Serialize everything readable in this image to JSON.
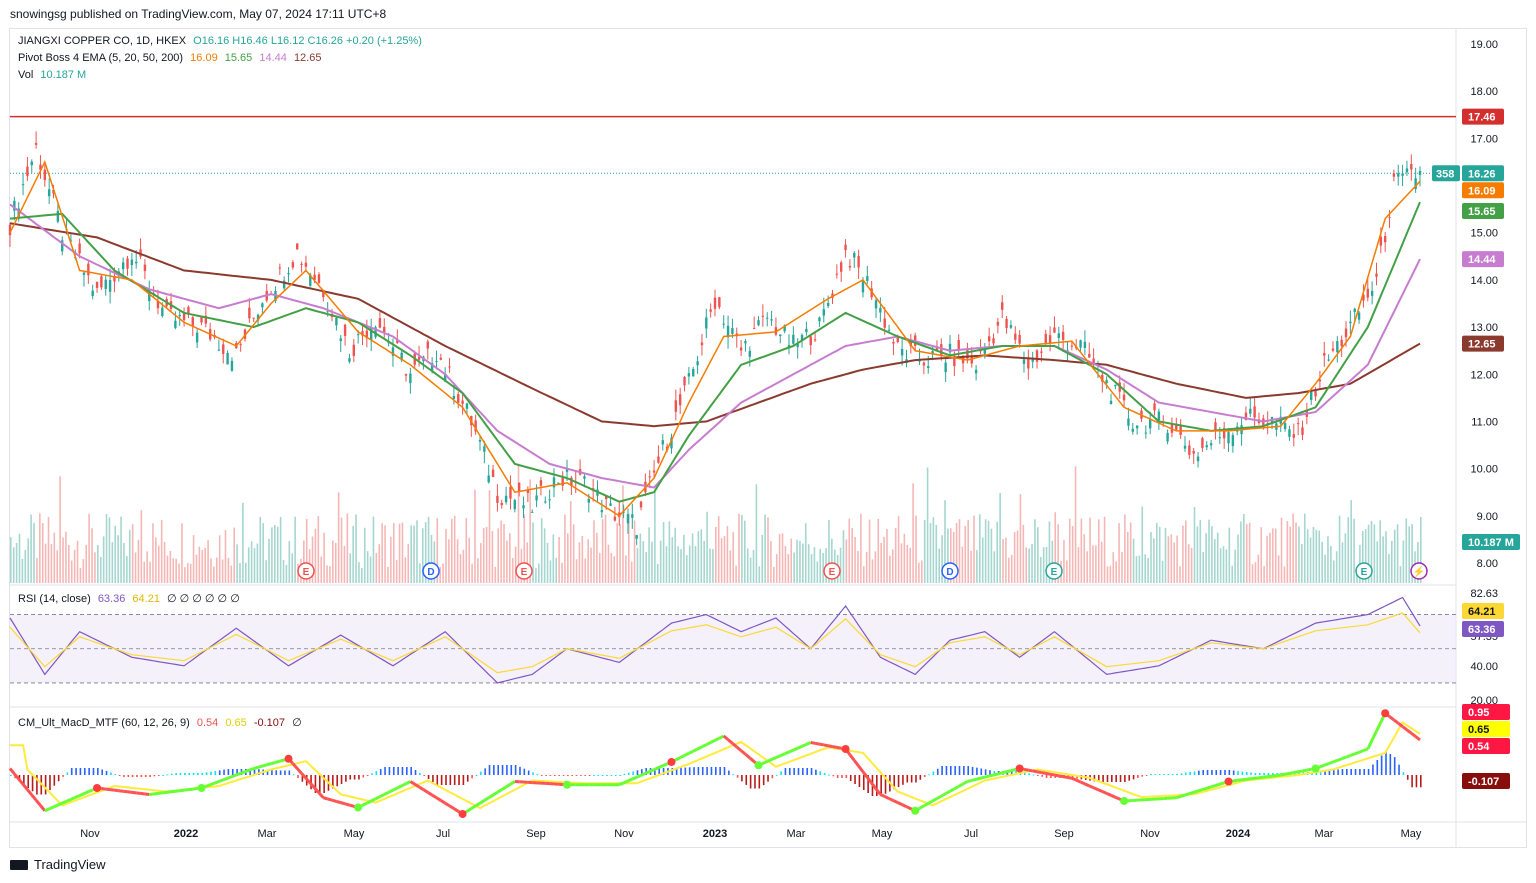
{
  "header": {
    "text": "snowingsg published on TradingView.com, May 07, 2024 17:11 UTC+8"
  },
  "footer": {
    "brand": "TradingView"
  },
  "legend": {
    "symbol": "JIANGXI COPPER CO, 1D, HKEX",
    "ohlc": "O16.16  H16.46  L16.12  C16.26  +0.20 (+1.25%)",
    "ema_label": "Pivot Boss 4 EMA (5, 20, 50, 200)",
    "ema_values": [
      "16.09",
      "15.65",
      "14.44",
      "12.65"
    ],
    "vol_label": "Vol",
    "vol_value": "10.187 M",
    "rsi_label": "RSI (14, close)",
    "rsi_values": [
      "63.36",
      "64.21"
    ],
    "rsi_extra": "∅ ∅ ∅ ∅ ∅ ∅",
    "macd_label": "CM_Ult_MacD_MTF (60, 12, 26, 9)",
    "macd_values": [
      "0.54",
      "0.65",
      "-0.107",
      "∅"
    ]
  },
  "colors": {
    "up": "#26a69a",
    "down": "#ef5350",
    "ema5": "#f57c00",
    "ema20": "#43a047",
    "ema50": "#c77dcf",
    "ema200": "#8b3a2e",
    "resistance": "#d32f2f",
    "rsi": "#7e57c2",
    "rsi_ma": "#fdd835"
  },
  "price_axis": {
    "ticks": [
      "19.00",
      "18.00",
      "17.00",
      "15.00",
      "14.00",
      "13.00",
      "12.00",
      "11.00",
      "10.00",
      "9.00",
      "8.00"
    ]
  },
  "price_tags": [
    {
      "text": "17.46",
      "color": "#d32f2f"
    },
    {
      "text": "16.26",
      "color": "#26a69a",
      "extra": "358"
    },
    {
      "text": "16.09",
      "color": "#f57c00"
    },
    {
      "text": "15.65",
      "color": "#43a047"
    },
    {
      "text": "14.44",
      "color": "#c77dcf"
    },
    {
      "text": "12.65",
      "color": "#8b3a2e"
    },
    {
      "text": "10.187 M",
      "color": "#26a69a"
    }
  ],
  "rsi_axis": {
    "ticks": [
      "82.63",
      "57.35",
      "40.00",
      "20.00"
    ],
    "tags": [
      {
        "text": "64.21",
        "color": "#fdd835"
      },
      {
        "text": "63.36",
        "color": "#7e57c2"
      }
    ]
  },
  "macd_axis": {
    "tags": [
      {
        "text": "0.95",
        "color": "#ff1744"
      },
      {
        "text": "0.65",
        "color": "#ffff00"
      },
      {
        "text": "0.54",
        "color": "#ff1744"
      },
      {
        "text": "-0.107",
        "color": "#880e0e"
      }
    ]
  },
  "time_axis": {
    "labels": [
      "Nov",
      "2022",
      "Mar",
      "May",
      "Jul",
      "Sep",
      "Nov",
      "2023",
      "Mar",
      "May",
      "Jul",
      "Sep",
      "Nov",
      "2024",
      "Mar",
      "May"
    ]
  },
  "events": [
    "E",
    "D",
    "E",
    "E",
    "D",
    "E",
    "E",
    "⚡"
  ],
  "chart_data": {
    "type": "candlestick",
    "title": "JIANGXI COPPER CO, 1D, HKEX",
    "ylim": [
      7.8,
      19.5
    ],
    "resistance": 17.46,
    "last_close": 16.26,
    "price_path": [
      [
        0,
        15.2
      ],
      [
        3,
        16.8
      ],
      [
        6,
        15.0
      ],
      [
        10,
        13.7
      ],
      [
        14,
        14.6
      ],
      [
        18,
        13.2
      ],
      [
        22,
        13.0
      ],
      [
        26,
        12.4
      ],
      [
        29,
        13.6
      ],
      [
        33,
        14.6
      ],
      [
        36,
        13.8
      ],
      [
        39,
        12.5
      ],
      [
        42,
        13.2
      ],
      [
        46,
        12.0
      ],
      [
        49,
        12.5
      ],
      [
        53,
        11.0
      ],
      [
        56,
        9.5
      ],
      [
        60,
        9.2
      ],
      [
        63,
        9.8
      ],
      [
        66,
        9.7
      ],
      [
        69,
        9.1
      ],
      [
        72,
        8.8
      ],
      [
        75,
        10.4
      ],
      [
        78,
        11.8
      ],
      [
        81,
        13.6
      ],
      [
        84,
        12.5
      ],
      [
        87,
        13.2
      ],
      [
        90,
        12.6
      ],
      [
        93,
        13.0
      ],
      [
        96,
        14.6
      ],
      [
        99,
        13.8
      ],
      [
        102,
        12.5
      ],
      [
        105,
        12.3
      ],
      [
        108,
        12.4
      ],
      [
        111,
        12.2
      ],
      [
        114,
        13.2
      ],
      [
        117,
        12.2
      ],
      [
        120,
        12.8
      ],
      [
        123,
        12.6
      ],
      [
        126,
        11.8
      ],
      [
        129,
        11.0
      ],
      [
        133,
        11.0
      ],
      [
        136,
        10.3
      ],
      [
        139,
        10.7
      ],
      [
        142,
        11.1
      ],
      [
        145,
        11.0
      ],
      [
        148,
        10.7
      ],
      [
        151,
        12.2
      ],
      [
        154,
        13.0
      ],
      [
        157,
        14.0
      ],
      [
        159,
        16.0
      ],
      [
        161,
        16.2
      ],
      [
        162,
        16.26
      ]
    ],
    "ema5": [
      [
        0,
        15.0
      ],
      [
        4,
        16.5
      ],
      [
        8,
        14.2
      ],
      [
        14,
        14.0
      ],
      [
        20,
        13.1
      ],
      [
        26,
        12.6
      ],
      [
        30,
        13.5
      ],
      [
        34,
        14.2
      ],
      [
        40,
        12.9
      ],
      [
        46,
        12.2
      ],
      [
        52,
        11.3
      ],
      [
        58,
        9.5
      ],
      [
        64,
        9.7
      ],
      [
        70,
        9.0
      ],
      [
        74,
        9.8
      ],
      [
        78,
        11.4
      ],
      [
        82,
        12.8
      ],
      [
        88,
        12.9
      ],
      [
        94,
        13.6
      ],
      [
        98,
        14.0
      ],
      [
        104,
        12.5
      ],
      [
        110,
        12.3
      ],
      [
        116,
        12.6
      ],
      [
        122,
        12.7
      ],
      [
        128,
        11.3
      ],
      [
        134,
        10.8
      ],
      [
        140,
        10.8
      ],
      [
        146,
        10.9
      ],
      [
        150,
        11.8
      ],
      [
        154,
        12.8
      ],
      [
        158,
        15.3
      ],
      [
        162,
        16.09
      ]
    ],
    "ema20": [
      [
        0,
        15.3
      ],
      [
        6,
        15.4
      ],
      [
        12,
        14.2
      ],
      [
        20,
        13.3
      ],
      [
        28,
        13.0
      ],
      [
        34,
        13.4
      ],
      [
        40,
        13.1
      ],
      [
        46,
        12.4
      ],
      [
        52,
        11.6
      ],
      [
        58,
        10.1
      ],
      [
        64,
        9.8
      ],
      [
        70,
        9.3
      ],
      [
        74,
        9.5
      ],
      [
        78,
        10.7
      ],
      [
        84,
        12.2
      ],
      [
        90,
        12.6
      ],
      [
        96,
        13.3
      ],
      [
        102,
        12.8
      ],
      [
        108,
        12.4
      ],
      [
        114,
        12.6
      ],
      [
        120,
        12.6
      ],
      [
        126,
        12.0
      ],
      [
        132,
        11.0
      ],
      [
        138,
        10.8
      ],
      [
        144,
        10.9
      ],
      [
        150,
        11.3
      ],
      [
        156,
        13.0
      ],
      [
        162,
        15.65
      ]
    ],
    "ema50": [
      [
        0,
        15.6
      ],
      [
        8,
        14.5
      ],
      [
        16,
        13.8
      ],
      [
        24,
        13.4
      ],
      [
        30,
        13.7
      ],
      [
        36,
        13.4
      ],
      [
        44,
        12.8
      ],
      [
        50,
        12.0
      ],
      [
        56,
        10.8
      ],
      [
        62,
        10.1
      ],
      [
        68,
        9.8
      ],
      [
        74,
        9.6
      ],
      [
        78,
        10.4
      ],
      [
        84,
        11.4
      ],
      [
        90,
        12.0
      ],
      [
        96,
        12.6
      ],
      [
        102,
        12.8
      ],
      [
        108,
        12.5
      ],
      [
        114,
        12.6
      ],
      [
        120,
        12.6
      ],
      [
        126,
        12.1
      ],
      [
        132,
        11.4
      ],
      [
        138,
        11.2
      ],
      [
        144,
        11.0
      ],
      [
        150,
        11.2
      ],
      [
        156,
        12.2
      ],
      [
        162,
        14.44
      ]
    ],
    "ema200": [
      [
        0,
        15.2
      ],
      [
        10,
        14.9
      ],
      [
        20,
        14.2
      ],
      [
        30,
        14.0
      ],
      [
        40,
        13.6
      ],
      [
        50,
        12.6
      ],
      [
        60,
        11.7
      ],
      [
        68,
        11.0
      ],
      [
        74,
        10.9
      ],
      [
        80,
        11.0
      ],
      [
        86,
        11.4
      ],
      [
        92,
        11.8
      ],
      [
        98,
        12.1
      ],
      [
        104,
        12.3
      ],
      [
        112,
        12.4
      ],
      [
        120,
        12.3
      ],
      [
        126,
        12.2
      ],
      [
        134,
        11.8
      ],
      [
        142,
        11.5
      ],
      [
        148,
        11.6
      ],
      [
        154,
        11.8
      ],
      [
        162,
        12.65
      ]
    ],
    "rsi_values": [
      [
        0,
        68
      ],
      [
        4,
        35
      ],
      [
        8,
        60
      ],
      [
        14,
        45
      ],
      [
        20,
        40
      ],
      [
        26,
        62
      ],
      [
        32,
        40
      ],
      [
        38,
        58
      ],
      [
        44,
        40
      ],
      [
        50,
        60
      ],
      [
        56,
        30
      ],
      [
        60,
        35
      ],
      [
        64,
        50
      ],
      [
        70,
        42
      ],
      [
        76,
        65
      ],
      [
        80,
        70
      ],
      [
        84,
        60
      ],
      [
        88,
        68
      ],
      [
        92,
        50
      ],
      [
        96,
        75
      ],
      [
        100,
        45
      ],
      [
        104,
        35
      ],
      [
        108,
        55
      ],
      [
        112,
        60
      ],
      [
        116,
        45
      ],
      [
        120,
        60
      ],
      [
        126,
        35
      ],
      [
        132,
        40
      ],
      [
        138,
        55
      ],
      [
        144,
        50
      ],
      [
        150,
        65
      ],
      [
        156,
        70
      ],
      [
        160,
        80
      ],
      [
        162,
        63.36
      ]
    ],
    "macd_values": [
      [
        0,
        0.1
      ],
      [
        4,
        -0.55
      ],
      [
        10,
        -0.2
      ],
      [
        16,
        -0.3
      ],
      [
        22,
        -0.2
      ],
      [
        28,
        0.1
      ],
      [
        32,
        0.25
      ],
      [
        36,
        -0.35
      ],
      [
        40,
        -0.5
      ],
      [
        46,
        -0.1
      ],
      [
        52,
        -0.6
      ],
      [
        58,
        -0.1
      ],
      [
        64,
        -0.15
      ],
      [
        70,
        -0.15
      ],
      [
        76,
        0.2
      ],
      [
        82,
        0.6
      ],
      [
        86,
        0.15
      ],
      [
        92,
        0.5
      ],
      [
        96,
        0.4
      ],
      [
        100,
        -0.3
      ],
      [
        104,
        -0.55
      ],
      [
        110,
        -0.1
      ],
      [
        116,
        0.1
      ],
      [
        122,
        -0.05
      ],
      [
        128,
        -0.4
      ],
      [
        134,
        -0.35
      ],
      [
        140,
        -0.1
      ],
      [
        146,
        0.0
      ],
      [
        150,
        0.1
      ],
      [
        156,
        0.4
      ],
      [
        158,
        0.95
      ],
      [
        162,
        0.54
      ]
    ]
  }
}
